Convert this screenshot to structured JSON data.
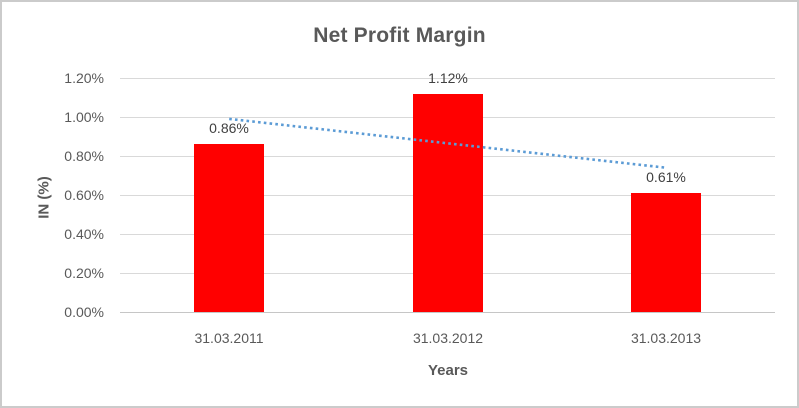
{
  "chart_data": {
    "type": "bar",
    "title": "Net Profit Margin",
    "categories": [
      "31.03.2011",
      "31.03.2012",
      "31.03.2013"
    ],
    "series": [
      {
        "name": "Net Profit Margin",
        "values": [
          0.86,
          1.12,
          0.61
        ]
      }
    ],
    "data_labels": [
      "0.86%",
      "1.12%",
      "0.61%"
    ],
    "xlabel": "Years",
    "ylabel": "IN (%)",
    "ylim": [
      0,
      1.2
    ],
    "ytick_step": 0.2,
    "ytick_labels": [
      "0.00%",
      "0.20%",
      "0.40%",
      "0.60%",
      "0.80%",
      "1.00%",
      "1.20%"
    ],
    "grid": true,
    "legend": "none",
    "bar_color": "#ff0000",
    "trendline": {
      "style": "dotted",
      "color": "#5b9bd5",
      "start_value": 0.99,
      "end_value": 0.74
    }
  }
}
